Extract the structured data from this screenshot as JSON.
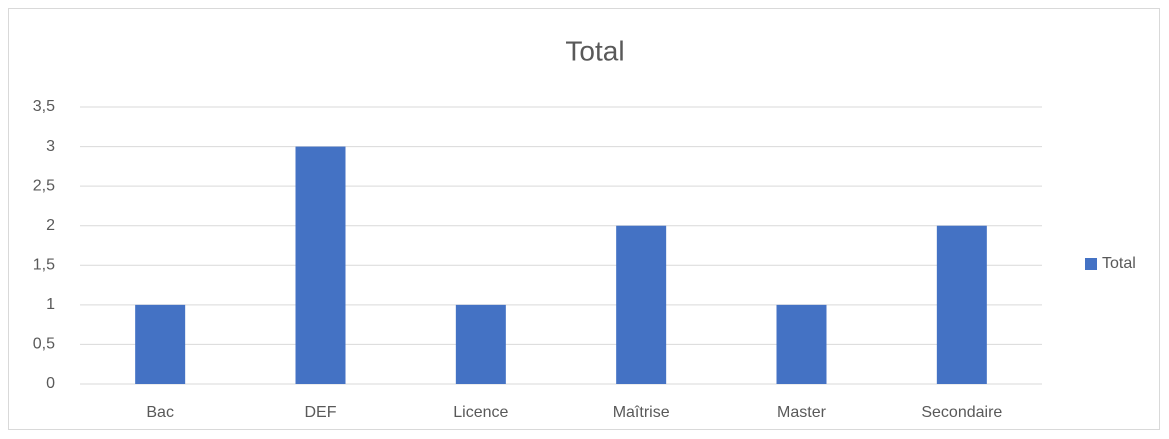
{
  "chart_data": {
    "type": "bar",
    "title": "Total",
    "categories": [
      "Bac",
      "DEF",
      "Licence",
      "Maîtrise",
      "Master",
      "Secondaire"
    ],
    "series": [
      {
        "name": "Total",
        "color": "#4472c4",
        "values": [
          1,
          3,
          1,
          2,
          1,
          2
        ]
      }
    ],
    "ylim": [
      0,
      3.5
    ],
    "yticks": [
      0,
      {
        "value": 0.5,
        "label": "0,5"
      },
      1,
      {
        "value": 1.5,
        "label": "1,5"
      },
      2,
      {
        "value": 2.5,
        "label": "2,5"
      },
      3,
      {
        "value": 3.5,
        "label": "3,5"
      }
    ],
    "grid": true,
    "legend": "right"
  }
}
